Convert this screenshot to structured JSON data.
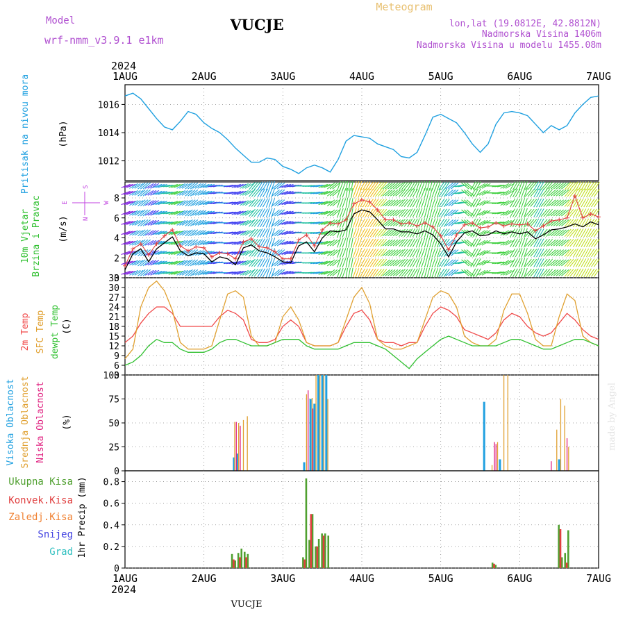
{
  "header": {
    "model_label": "Model",
    "model_name": "wrf-nmm_v3.9.1  e1km",
    "station": "VUCJE",
    "meteogram": "Meteogram",
    "lonlat": "lon,lat (19.0812E, 42.8812N)",
    "altitude": "Nadmorska Visina 1406m",
    "altitude_model": "Nadmorska Visina u modelu 1455.08m",
    "watermark": "made by Angel",
    "footer_station": "VUCJE"
  },
  "colors": {
    "pressure": "#1fa0e0",
    "temp2m": "#f04848",
    "sfc": "#e0a030",
    "dewpt": "#30c030",
    "cloud_high": "#20a0e0",
    "cloud_mid": "#e0a030",
    "cloud_low": "#e02080",
    "precip_total": "#50a030",
    "precip_conv": "#e04040",
    "precip_frozen": "#f08030",
    "snow": "#4040e0",
    "hail": "#30c0c0",
    "wind_speed": "#000000",
    "gust": "#e04040",
    "wind_axis": "#c040e0"
  },
  "chart_data": [
    {
      "type": "line",
      "name": "pressure",
      "ylabel_1": "Pritisak na nivou mora",
      "ylabel_2": "(hPa)",
      "x_ticks": [
        "1AUG",
        "2AUG",
        "3AUG",
        "4AUG",
        "5AUG",
        "6AUG",
        "7AUG"
      ],
      "year": "2024",
      "ylim": [
        1010.6,
        1017.4
      ],
      "y_ticks": [
        "1012",
        "1014",
        "1016"
      ],
      "x_days": [
        0,
        0.1,
        0.2,
        0.3,
        0.4,
        0.5,
        0.6,
        0.7,
        0.8,
        0.9,
        1,
        1.1,
        1.2,
        1.3,
        1.4,
        1.5,
        1.6,
        1.7,
        1.8,
        1.9,
        2,
        2.1,
        2.2,
        2.3,
        2.4,
        2.5,
        2.6,
        2.7,
        2.8,
        2.9,
        3,
        3.1,
        3.2,
        3.3,
        3.4,
        3.5,
        3.6,
        3.7,
        3.8,
        3.9,
        4,
        4.1,
        4.2,
        4.3,
        4.4,
        4.5,
        4.6,
        4.7,
        4.8,
        4.9,
        5,
        5.1,
        5.2,
        5.3,
        5.4,
        5.5,
        5.6,
        5.7,
        5.8,
        5.9,
        6
      ],
      "values": [
        1016.6,
        1016.8,
        1016.4,
        1015.7,
        1015.0,
        1014.4,
        1014.2,
        1014.8,
        1015.5,
        1015.3,
        1014.7,
        1014.3,
        1014.0,
        1013.5,
        1012.9,
        1012.4,
        1011.9,
        1011.9,
        1012.2,
        1012.1,
        1011.6,
        1011.4,
        1011.1,
        1011.5,
        1011.7,
        1011.5,
        1011.2,
        1012.1,
        1013.4,
        1013.8,
        1013.7,
        1013.6,
        1013.2,
        1013.0,
        1012.8,
        1012.3,
        1012.2,
        1012.6,
        1013.8,
        1015.1,
        1015.3,
        1015.0,
        1014.7,
        1014.0,
        1013.2,
        1012.6,
        1013.2,
        1014.6,
        1015.4,
        1015.5,
        1015.4,
        1015.2,
        1014.6,
        1014.0,
        1014.5,
        1014.2,
        1014.5,
        1015.4,
        1016.0,
        1016.5,
        1016.6
      ]
    },
    {
      "type": "line",
      "name": "wind",
      "ylabel_1": "10m Vjetar",
      "ylabel_2": "Brzina i Pravac",
      "ylabel_3": "(m/s)",
      "compass": "N",
      "compass_w": "W",
      "compass_e": "E",
      "compass_s": "S",
      "ylim": [
        0,
        9.6
      ],
      "y_ticks": [
        "0",
        "2",
        "4",
        "6",
        "8"
      ],
      "series": [
        {
          "x_days": [
            0,
            0.1,
            0.2,
            0.3,
            0.4,
            0.5,
            0.6,
            0.7,
            0.8,
            0.9,
            1,
            1.1,
            1.2,
            1.3,
            1.4,
            1.5,
            1.6,
            1.7,
            1.8,
            1.9,
            2,
            2.1,
            2.2,
            2.3,
            2.4,
            2.5,
            2.6,
            2.7,
            2.8,
            2.9,
            3,
            3.1,
            3.2,
            3.3,
            3.4,
            3.5,
            3.6,
            3.7,
            3.8,
            3.9,
            4,
            4.1,
            4.2,
            4.3,
            4.4,
            4.5,
            4.6,
            4.7,
            4.8,
            4.9,
            5,
            5.1,
            5.2,
            5.3,
            5.4,
            5.5,
            5.6,
            5.7,
            5.8,
            5.9,
            6
          ],
          "values": [
            0.8,
            2.4,
            2.9,
            1.6,
            2.9,
            3.5,
            4.1,
            2.7,
            2.2,
            2.5,
            2.4,
            1.6,
            2.1,
            1.9,
            1.3,
            3.0,
            3.3,
            2.7,
            2.5,
            2.1,
            1.6,
            1.5,
            3.2,
            3.6,
            2.6,
            4.0,
            4.7,
            4.6,
            4.8,
            6.4,
            6.8,
            6.6,
            5.8,
            4.9,
            4.9,
            4.6,
            4.6,
            4.4,
            4.7,
            4.3,
            3.4,
            2.1,
            3.6,
            4.5,
            4.7,
            4.2,
            4.3,
            4.7,
            4.4,
            4.6,
            4.4,
            4.6,
            3.9,
            4.3,
            4.8,
            4.9,
            5.1,
            5.4,
            5.1,
            5.6,
            5.3
          ]
        },
        {
          "x_days": [
            0,
            0.1,
            0.2,
            0.3,
            0.4,
            0.5,
            0.6,
            0.7,
            0.8,
            0.9,
            1,
            1.1,
            1.2,
            1.3,
            1.4,
            1.5,
            1.6,
            1.7,
            1.8,
            1.9,
            2,
            2.1,
            2.2,
            2.3,
            2.4,
            2.5,
            2.6,
            2.7,
            2.8,
            2.9,
            3,
            3.1,
            3.2,
            3.3,
            3.4,
            3.5,
            3.6,
            3.7,
            3.8,
            3.9,
            4,
            4.1,
            4.2,
            4.3,
            4.4,
            4.5,
            4.6,
            4.7,
            4.8,
            4.9,
            5,
            5.1,
            5.2,
            5.3,
            5.4,
            5.5,
            5.6,
            5.7,
            5.8,
            5.9,
            6
          ],
          "values": [
            1.2,
            2.9,
            3.4,
            2.3,
            3.4,
            4.2,
            4.8,
            3.2,
            2.7,
            3.1,
            3.0,
            2.1,
            2.5,
            2.4,
            1.9,
            3.6,
            3.9,
            3.1,
            3.0,
            2.6,
            1.9,
            1.9,
            3.8,
            4.3,
            3.2,
            4.8,
            5.5,
            5.4,
            5.8,
            7.4,
            7.8,
            7.6,
            6.8,
            5.8,
            5.8,
            5.4,
            5.5,
            5.2,
            5.5,
            5.1,
            4.2,
            2.8,
            4.3,
            5.3,
            5.5,
            5.0,
            5.1,
            5.5,
            5.2,
            5.4,
            5.3,
            5.4,
            4.7,
            5.2,
            5.7,
            5.8,
            6.0,
            8.2,
            6.0,
            6.4,
            6.1
          ]
        }
      ],
      "direction_bands": [
        {
          "x_days": [
            0,
            0.1,
            0.2,
            0.3,
            0.4,
            0.5,
            0.6,
            0.7,
            0.8,
            0.9,
            1,
            1.1,
            1.2,
            1.3,
            1.4,
            1.5,
            1.6,
            1.7,
            1.8,
            1.9,
            2,
            2.1,
            2.2,
            2.3,
            2.4,
            2.5,
            2.6,
            2.7,
            2.8,
            2.9,
            3,
            3.1,
            3.2,
            3.3,
            3.4,
            3.5,
            3.6,
            3.7,
            3.8,
            3.9,
            4,
            4.1,
            4.2,
            4.3,
            4.4,
            4.5,
            4.6,
            4.7,
            4.8,
            4.9,
            5,
            5.1,
            5.2,
            5.3,
            5.4,
            5.5,
            5.6,
            5.7,
            5.8,
            5.9,
            6
          ],
          "direction_deg": [
            250,
            240,
            230,
            240,
            250,
            260,
            250,
            240,
            230,
            240,
            250,
            260,
            270,
            260,
            250,
            240,
            220,
            210,
            200,
            230,
            250,
            260,
            270,
            265,
            260,
            250,
            230,
            200,
            190,
            200,
            210,
            215,
            220,
            230,
            230,
            220,
            210,
            200,
            195,
            200,
            215,
            230,
            260,
            310,
            30,
            60,
            90,
            80,
            60,
            30,
            20,
            40,
            210,
            220,
            230,
            230,
            220,
            210,
            210,
            215,
            230
          ]
        }
      ]
    },
    {
      "type": "line",
      "name": "temperature",
      "ylabel_1": "2m Temp",
      "ylabel_2": "SFC Temp",
      "ylabel_3": "dewpt Temp",
      "ylabel_4": "(C)",
      "ylim": [
        3,
        33
      ],
      "y_ticks": [
        "3",
        "6",
        "9",
        "12",
        "15",
        "18",
        "21",
        "24",
        "27",
        "30",
        "33"
      ],
      "x_days": [
        0,
        0.1,
        0.2,
        0.3,
        0.4,
        0.5,
        0.6,
        0.7,
        0.8,
        0.9,
        1,
        1.1,
        1.2,
        1.3,
        1.4,
        1.5,
        1.6,
        1.7,
        1.8,
        1.9,
        2,
        2.1,
        2.2,
        2.3,
        2.4,
        2.5,
        2.6,
        2.7,
        2.8,
        2.9,
        3,
        3.1,
        3.2,
        3.3,
        3.4,
        3.5,
        3.6,
        3.7,
        3.8,
        3.9,
        4,
        4.1,
        4.2,
        4.3,
        4.4,
        4.5,
        4.6,
        4.7,
        4.8,
        4.9,
        5,
        5.1,
        5.2,
        5.3,
        5.4,
        5.5,
        5.6,
        5.7,
        5.8,
        5.9,
        6
      ],
      "series": [
        {
          "name": "2m Temp",
          "values": [
            13,
            15,
            19,
            22,
            24,
            24,
            22,
            18,
            18,
            18,
            18,
            18,
            21,
            23,
            22,
            20,
            14,
            13,
            13,
            14,
            18,
            20,
            18,
            13,
            12,
            12,
            12,
            13,
            18,
            22,
            23,
            20,
            14,
            13,
            13,
            12,
            13,
            13,
            18,
            22,
            24,
            23,
            21,
            17,
            16,
            15,
            14,
            16,
            20,
            22,
            21,
            18,
            16,
            15,
            16,
            19,
            22,
            20,
            17,
            15,
            14
          ]
        },
        {
          "name": "SFC Temp",
          "values": [
            8,
            11,
            24,
            30,
            32,
            29,
            23,
            13,
            11,
            11,
            11,
            12,
            20,
            28,
            29,
            27,
            15,
            12,
            12,
            13,
            21,
            24,
            20,
            13,
            12,
            12,
            12,
            13,
            20,
            27,
            30,
            25,
            14,
            12,
            11,
            11,
            12,
            13,
            20,
            27,
            29,
            28,
            24,
            15,
            13,
            12,
            12,
            14,
            23,
            28,
            28,
            22,
            14,
            12,
            12,
            21,
            28,
            26,
            15,
            13,
            12
          ]
        },
        {
          "name": "dewpt Temp",
          "values": [
            6,
            7,
            9,
            12,
            14,
            13,
            13,
            11,
            10,
            10,
            10,
            11,
            13,
            14,
            14,
            13,
            12,
            12,
            12,
            13,
            14,
            14,
            14,
            12,
            11,
            11,
            11,
            11,
            12,
            13,
            13,
            13,
            12,
            11,
            9,
            7,
            5,
            8,
            10,
            12,
            14,
            15,
            14,
            13,
            12,
            12,
            12,
            12,
            13,
            14,
            14,
            13,
            12,
            11,
            11,
            12,
            13,
            14,
            14,
            13,
            12
          ]
        }
      ]
    },
    {
      "type": "bar",
      "name": "cloud_cover",
      "ylabel_1": "Visoka Oblacnost",
      "ylabel_2": "Srednja Oblacnost",
      "ylabel_3": "Niska Oblacnost",
      "ylabel_4": "(%)",
      "ylim": [
        0,
        100
      ],
      "y_ticks": [
        "0",
        "25",
        "50",
        "75",
        "100"
      ],
      "series": [
        {
          "name": "Visoka Oblacnost",
          "x_days": [
            1.38,
            1.42,
            2.27,
            2.35,
            2.4,
            2.45,
            2.5,
            2.55,
            4.55,
            4.75,
            5.5
          ],
          "values": [
            14,
            18,
            9,
            75,
            70,
            100,
            100,
            100,
            72,
            12,
            12
          ]
        },
        {
          "name": "Srednja Oblacnost",
          "x_days": [
            1.39,
            1.44,
            1.5,
            1.55,
            2.3,
            2.37,
            2.42,
            2.47,
            2.52,
            2.57,
            4.65,
            4.72,
            4.8,
            4.85,
            5.47,
            5.52,
            5.57,
            5.62
          ],
          "values": [
            51,
            50,
            53,
            57,
            80,
            76,
            100,
            100,
            100,
            75,
            6,
            30,
            100,
            100,
            43,
            75,
            68,
            25
          ]
        },
        {
          "name": "Niska Oblacnost",
          "x_days": [
            1.41,
            1.46,
            2.32,
            2.38,
            4.68,
            4.7,
            5.4,
            5.6
          ],
          "values": [
            51,
            47,
            84,
            65,
            30,
            28,
            10,
            34
          ]
        }
      ]
    },
    {
      "type": "bar",
      "name": "precipitation",
      "ylabel_main": "1hr Precip (mm)",
      "legend": [
        "Ukupna  Kisa",
        "Konvek.Kisa",
        "Zaledj.Kisa",
        "Snijeg",
        "Grad"
      ],
      "ylim": [
        0,
        0.9
      ],
      "y_ticks": [
        "0",
        "0.2",
        "0.4",
        "0.6",
        "0.8"
      ],
      "series": [
        {
          "name": "Ukupna  Kisa",
          "x_days": [
            1.36,
            1.4,
            1.44,
            1.48,
            1.52,
            1.56,
            2.26,
            2.3,
            2.34,
            2.38,
            2.42,
            2.46,
            2.5,
            2.54,
            2.58,
            4.66,
            4.7,
            5.5,
            5.54,
            5.58,
            5.62
          ],
          "values": [
            0.13,
            0.07,
            0.14,
            0.18,
            0.15,
            0.13,
            0.1,
            0.83,
            0.26,
            0.5,
            0.2,
            0.27,
            0.32,
            0.32,
            0.3,
            0.05,
            0.03,
            0.4,
            0.1,
            0.14,
            0.35
          ]
        },
        {
          "name": "Konvek.Kisa",
          "x_days": [
            1.37,
            1.45,
            1.53,
            2.27,
            2.35,
            2.43,
            2.51,
            4.67,
            5.51,
            5.59
          ],
          "values": [
            0.08,
            0.1,
            0.1,
            0.08,
            0.5,
            0.2,
            0.3,
            0.04,
            0.36,
            0.05
          ]
        }
      ]
    }
  ]
}
